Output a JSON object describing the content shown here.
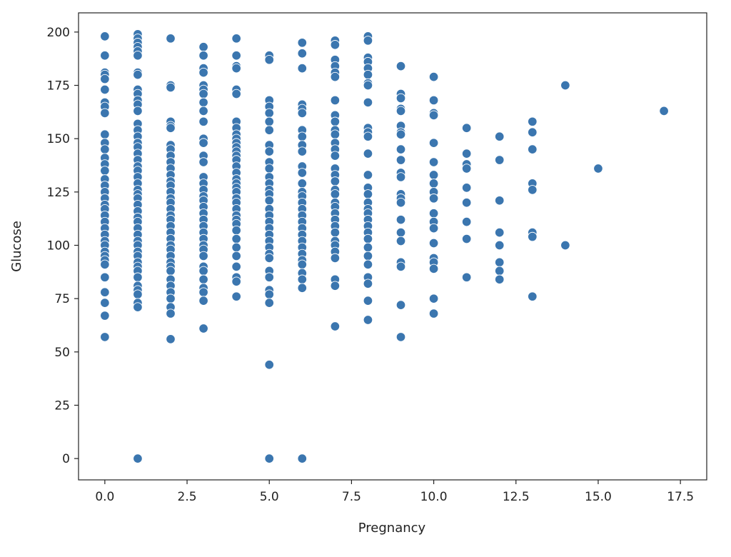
{
  "chart_data": {
    "type": "scatter",
    "title": "",
    "xlabel": "Pregnancy",
    "ylabel": "Glucose",
    "xlim": [
      -0.8,
      18.3
    ],
    "ylim": [
      -10,
      209
    ],
    "grid": false,
    "marker_color": "#3b76af",
    "x_ticks": [
      "0.0",
      "2.5",
      "5.0",
      "7.5",
      "10.0",
      "12.5",
      "15.0",
      "17.5"
    ],
    "x_tick_values": [
      0,
      2.5,
      5,
      7.5,
      10,
      12.5,
      15,
      17.5
    ],
    "y_ticks": [
      "0",
      "25",
      "50",
      "75",
      "100",
      "125",
      "150",
      "175",
      "200"
    ],
    "y_tick_values": [
      0,
      25,
      50,
      75,
      100,
      125,
      150,
      175,
      200
    ],
    "points_by_x": [
      {
        "x": 0,
        "y": [
          198,
          189,
          181,
          180,
          178,
          173,
          167,
          165,
          162,
          152,
          148,
          145,
          141,
          138,
          135,
          131,
          128,
          125,
          122,
          119,
          117,
          114,
          111,
          108,
          105,
          102,
          100,
          97,
          95,
          93,
          91,
          85,
          78,
          73,
          67,
          57
        ]
      },
      {
        "x": 1,
        "y": [
          199,
          197,
          195,
          193,
          191,
          189,
          181,
          180,
          173,
          171,
          168,
          166,
          163,
          157,
          154,
          151,
          148,
          146,
          143,
          140,
          137,
          135,
          132,
          129,
          126,
          124,
          122,
          119,
          116,
          113,
          111,
          108,
          105,
          102,
          100,
          97,
          95,
          92,
          90,
          88,
          85,
          81,
          79,
          77,
          73,
          71,
          0
        ]
      },
      {
        "x": 2,
        "y": [
          197,
          175,
          174,
          158,
          156,
          155,
          147,
          145,
          142,
          139,
          136,
          133,
          130,
          128,
          125,
          122,
          120,
          117,
          114,
          112,
          109,
          106,
          103,
          100,
          98,
          95,
          92,
          90,
          88,
          84,
          81,
          78,
          75,
          71,
          68,
          56
        ]
      },
      {
        "x": 3,
        "y": [
          193,
          189,
          183,
          181,
          175,
          173,
          171,
          167,
          163,
          158,
          150,
          148,
          142,
          139,
          132,
          129,
          126,
          123,
          121,
          118,
          115,
          112,
          109,
          106,
          103,
          100,
          98,
          95,
          90,
          88,
          84,
          80,
          78,
          74,
          61
        ]
      },
      {
        "x": 4,
        "y": [
          197,
          189,
          184,
          183,
          173,
          171,
          158,
          155,
          152,
          150,
          148,
          146,
          144,
          142,
          140,
          137,
          134,
          131,
          129,
          127,
          125,
          122,
          120,
          117,
          114,
          112,
          110,
          107,
          103,
          99,
          95,
          90,
          85,
          83,
          76
        ]
      },
      {
        "x": 5,
        "y": [
          189,
          187,
          168,
          165,
          162,
          158,
          154,
          147,
          144,
          139,
          136,
          132,
          129,
          126,
          124,
          121,
          117,
          114,
          111,
          108,
          105,
          102,
          99,
          96,
          94,
          88,
          85,
          79,
          77,
          73,
          44,
          0
        ]
      },
      {
        "x": 6,
        "y": [
          195,
          190,
          183,
          166,
          164,
          162,
          154,
          151,
          147,
          144,
          137,
          134,
          129,
          125,
          123,
          120,
          117,
          114,
          111,
          108,
          105,
          102,
          99,
          96,
          93,
          91,
          87,
          84,
          80,
          0
        ]
      },
      {
        "x": 7,
        "y": [
          196,
          194,
          187,
          184,
          181,
          179,
          168,
          161,
          158,
          154,
          152,
          148,
          145,
          142,
          136,
          133,
          130,
          126,
          124,
          120,
          118,
          115,
          112,
          109,
          106,
          102,
          100,
          97,
          94,
          84,
          81,
          62
        ]
      },
      {
        "x": 8,
        "y": [
          198,
          196,
          188,
          186,
          183,
          180,
          176,
          175,
          167,
          155,
          153,
          151,
          143,
          133,
          127,
          124,
          120,
          117,
          115,
          112,
          109,
          106,
          103,
          99,
          95,
          91,
          85,
          82,
          74,
          65
        ]
      },
      {
        "x": 9,
        "y": [
          184,
          171,
          169,
          164,
          163,
          156,
          153,
          152,
          145,
          140,
          134,
          132,
          124,
          122,
          120,
          112,
          106,
          102,
          92,
          90,
          72,
          57
        ]
      },
      {
        "x": 10,
        "y": [
          179,
          168,
          162,
          161,
          148,
          139,
          133,
          129,
          125,
          122,
          115,
          111,
          108,
          101,
          94,
          92,
          89,
          75,
          68
        ]
      },
      {
        "x": 11,
        "y": [
          155,
          143,
          138,
          136,
          127,
          120,
          111,
          103,
          85
        ]
      },
      {
        "x": 12,
        "y": [
          151,
          140,
          121,
          106,
          100,
          92,
          88,
          84
        ]
      },
      {
        "x": 13,
        "y": [
          158,
          153,
          145,
          129,
          126,
          106,
          104,
          76
        ]
      },
      {
        "x": 14,
        "y": [
          175,
          100
        ]
      },
      {
        "x": 15,
        "y": [
          136
        ]
      },
      {
        "x": 17,
        "y": [
          163
        ]
      }
    ]
  }
}
